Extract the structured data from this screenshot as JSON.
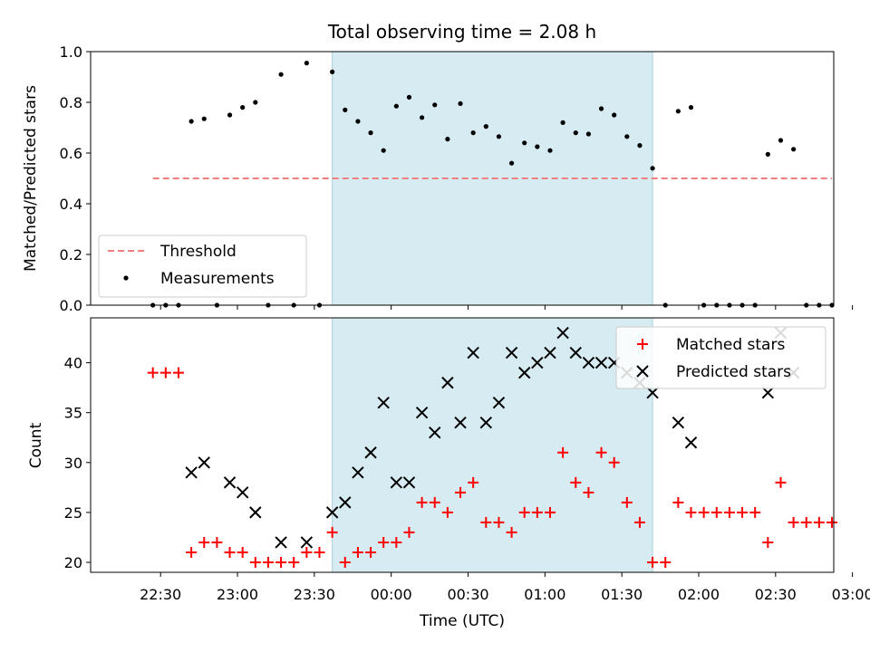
{
  "chart_data": [
    {
      "type": "scatter",
      "title": "Total observing time = 2.08 h",
      "ylabel": "Matched/Predicted stars",
      "ylim": [
        0,
        1.0
      ],
      "yticks": [
        0.0,
        0.2,
        0.4,
        0.6,
        0.8,
        1.0
      ],
      "ytick_labels": [
        "0.0",
        "0.2",
        "0.4",
        "0.6",
        "0.8",
        "1.0"
      ],
      "shaded_interval": [
        "23:37",
        "01:42"
      ],
      "legend_position": "lower-left",
      "threshold": {
        "name": "Threshold",
        "value": 0.5,
        "x_start": "22:27",
        "x_end": "02:52",
        "color": "#f08080",
        "style": "dashed"
      },
      "series": [
        {
          "name": "Measurements",
          "color": "#000000",
          "marker": "dot",
          "points": [
            [
              "22:27",
              0.0
            ],
            [
              "22:32",
              0.0
            ],
            [
              "22:37",
              0.0
            ],
            [
              "22:42",
              0.725
            ],
            [
              "22:47",
              0.735
            ],
            [
              "22:52",
              0.0
            ],
            [
              "22:57",
              0.75
            ],
            [
              "23:02",
              0.78
            ],
            [
              "23:07",
              0.8
            ],
            [
              "23:12",
              0.0
            ],
            [
              "23:17",
              0.91
            ],
            [
              "23:22",
              0.0
            ],
            [
              "23:27",
              0.955
            ],
            [
              "23:32",
              0.0
            ],
            [
              "23:37",
              0.92
            ],
            [
              "23:42",
              0.77
            ],
            [
              "23:47",
              0.725
            ],
            [
              "23:52",
              0.68
            ],
            [
              "23:57",
              0.61
            ],
            [
              "00:02",
              0.785
            ],
            [
              "00:07",
              0.82
            ],
            [
              "00:12",
              0.74
            ],
            [
              "00:17",
              0.79
            ],
            [
              "00:22",
              0.655
            ],
            [
              "00:27",
              0.795
            ],
            [
              "00:32",
              0.68
            ],
            [
              "00:37",
              0.705
            ],
            [
              "00:42",
              0.665
            ],
            [
              "00:47",
              0.56
            ],
            [
              "00:52",
              0.64
            ],
            [
              "00:57",
              0.625
            ],
            [
              "01:02",
              0.61
            ],
            [
              "01:07",
              0.72
            ],
            [
              "01:12",
              0.68
            ],
            [
              "01:17",
              0.675
            ],
            [
              "01:22",
              0.775
            ],
            [
              "01:27",
              0.75
            ],
            [
              "01:32",
              0.665
            ],
            [
              "01:37",
              0.63
            ],
            [
              "01:42",
              0.54
            ],
            [
              "01:47",
              0.0
            ],
            [
              "01:52",
              0.765
            ],
            [
              "01:57",
              0.78
            ],
            [
              "02:02",
              0.0
            ],
            [
              "02:07",
              0.0
            ],
            [
              "02:12",
              0.0
            ],
            [
              "02:17",
              0.0
            ],
            [
              "02:22",
              0.0
            ],
            [
              "02:27",
              0.595
            ],
            [
              "02:32",
              0.65
            ],
            [
              "02:37",
              0.615
            ],
            [
              "02:42",
              0.0
            ],
            [
              "02:47",
              0.0
            ],
            [
              "02:52",
              0.0
            ]
          ]
        }
      ]
    },
    {
      "type": "scatter",
      "xlabel": "Time (UTC)",
      "ylabel": "Count",
      "ylim": [
        19,
        44.5
      ],
      "yticks": [
        20,
        25,
        30,
        35,
        40
      ],
      "ytick_labels": [
        "20",
        "25",
        "30",
        "35",
        "40"
      ],
      "xticks": [
        "22:30",
        "23:00",
        "23:30",
        "00:00",
        "00:30",
        "01:00",
        "01:30",
        "02:00",
        "02:30",
        "03:00"
      ],
      "shaded_interval": [
        "23:37",
        "01:42"
      ],
      "legend_position": "upper-right",
      "series": [
        {
          "name": "Matched stars",
          "color": "#ff0000",
          "marker": "plus",
          "points": [
            [
              "22:27",
              39
            ],
            [
              "22:32",
              39
            ],
            [
              "22:37",
              39
            ],
            [
              "22:42",
              21
            ],
            [
              "22:47",
              22
            ],
            [
              "22:52",
              22
            ],
            [
              "22:57",
              21
            ],
            [
              "23:02",
              21
            ],
            [
              "23:07",
              20
            ],
            [
              "23:12",
              20
            ],
            [
              "23:17",
              20
            ],
            [
              "23:22",
              20
            ],
            [
              "23:27",
              21
            ],
            [
              "23:32",
              21
            ],
            [
              "23:37",
              23
            ],
            [
              "23:42",
              20
            ],
            [
              "23:47",
              21
            ],
            [
              "23:52",
              21
            ],
            [
              "23:57",
              22
            ],
            [
              "00:02",
              22
            ],
            [
              "00:07",
              23
            ],
            [
              "00:12",
              26
            ],
            [
              "00:17",
              26
            ],
            [
              "00:22",
              25
            ],
            [
              "00:27",
              27
            ],
            [
              "00:32",
              28
            ],
            [
              "00:37",
              24
            ],
            [
              "00:42",
              24
            ],
            [
              "00:47",
              23
            ],
            [
              "00:52",
              25
            ],
            [
              "00:57",
              25
            ],
            [
              "01:02",
              25
            ],
            [
              "01:07",
              31
            ],
            [
              "01:12",
              28
            ],
            [
              "01:17",
              27
            ],
            [
              "01:22",
              31
            ],
            [
              "01:27",
              30
            ],
            [
              "01:32",
              26
            ],
            [
              "01:37",
              24
            ],
            [
              "01:42",
              20
            ],
            [
              "01:47",
              20
            ],
            [
              "01:52",
              26
            ],
            [
              "01:57",
              25
            ],
            [
              "02:02",
              25
            ],
            [
              "02:07",
              25
            ],
            [
              "02:12",
              25
            ],
            [
              "02:17",
              25
            ],
            [
              "02:22",
              25
            ],
            [
              "02:27",
              22
            ],
            [
              "02:32",
              28
            ],
            [
              "02:37",
              24
            ],
            [
              "02:42",
              24
            ],
            [
              "02:47",
              24
            ],
            [
              "02:52",
              24
            ]
          ]
        },
        {
          "name": "Predicted stars",
          "color": "#000000",
          "marker": "x",
          "points": [
            [
              "22:42",
              29
            ],
            [
              "22:47",
              30
            ],
            [
              "22:57",
              28
            ],
            [
              "23:02",
              27
            ],
            [
              "23:07",
              25
            ],
            [
              "23:17",
              22
            ],
            [
              "23:27",
              22
            ],
            [
              "23:37",
              25
            ],
            [
              "23:42",
              26
            ],
            [
              "23:47",
              29
            ],
            [
              "23:52",
              31
            ],
            [
              "23:57",
              36
            ],
            [
              "00:02",
              28
            ],
            [
              "00:07",
              28
            ],
            [
              "00:12",
              35
            ],
            [
              "00:17",
              33
            ],
            [
              "00:22",
              38
            ],
            [
              "00:27",
              34
            ],
            [
              "00:32",
              41
            ],
            [
              "00:37",
              34
            ],
            [
              "00:42",
              36
            ],
            [
              "00:47",
              41
            ],
            [
              "00:52",
              39
            ],
            [
              "00:57",
              40
            ],
            [
              "01:02",
              41
            ],
            [
              "01:07",
              43
            ],
            [
              "01:12",
              41
            ],
            [
              "01:17",
              40
            ],
            [
              "01:22",
              40
            ],
            [
              "01:27",
              40
            ],
            [
              "01:32",
              39
            ],
            [
              "01:37",
              38
            ],
            [
              "01:42",
              37
            ],
            [
              "01:52",
              34
            ],
            [
              "01:57",
              32
            ],
            [
              "02:27",
              37
            ],
            [
              "02:32",
              43
            ],
            [
              "02:37",
              39
            ]
          ]
        }
      ]
    }
  ]
}
